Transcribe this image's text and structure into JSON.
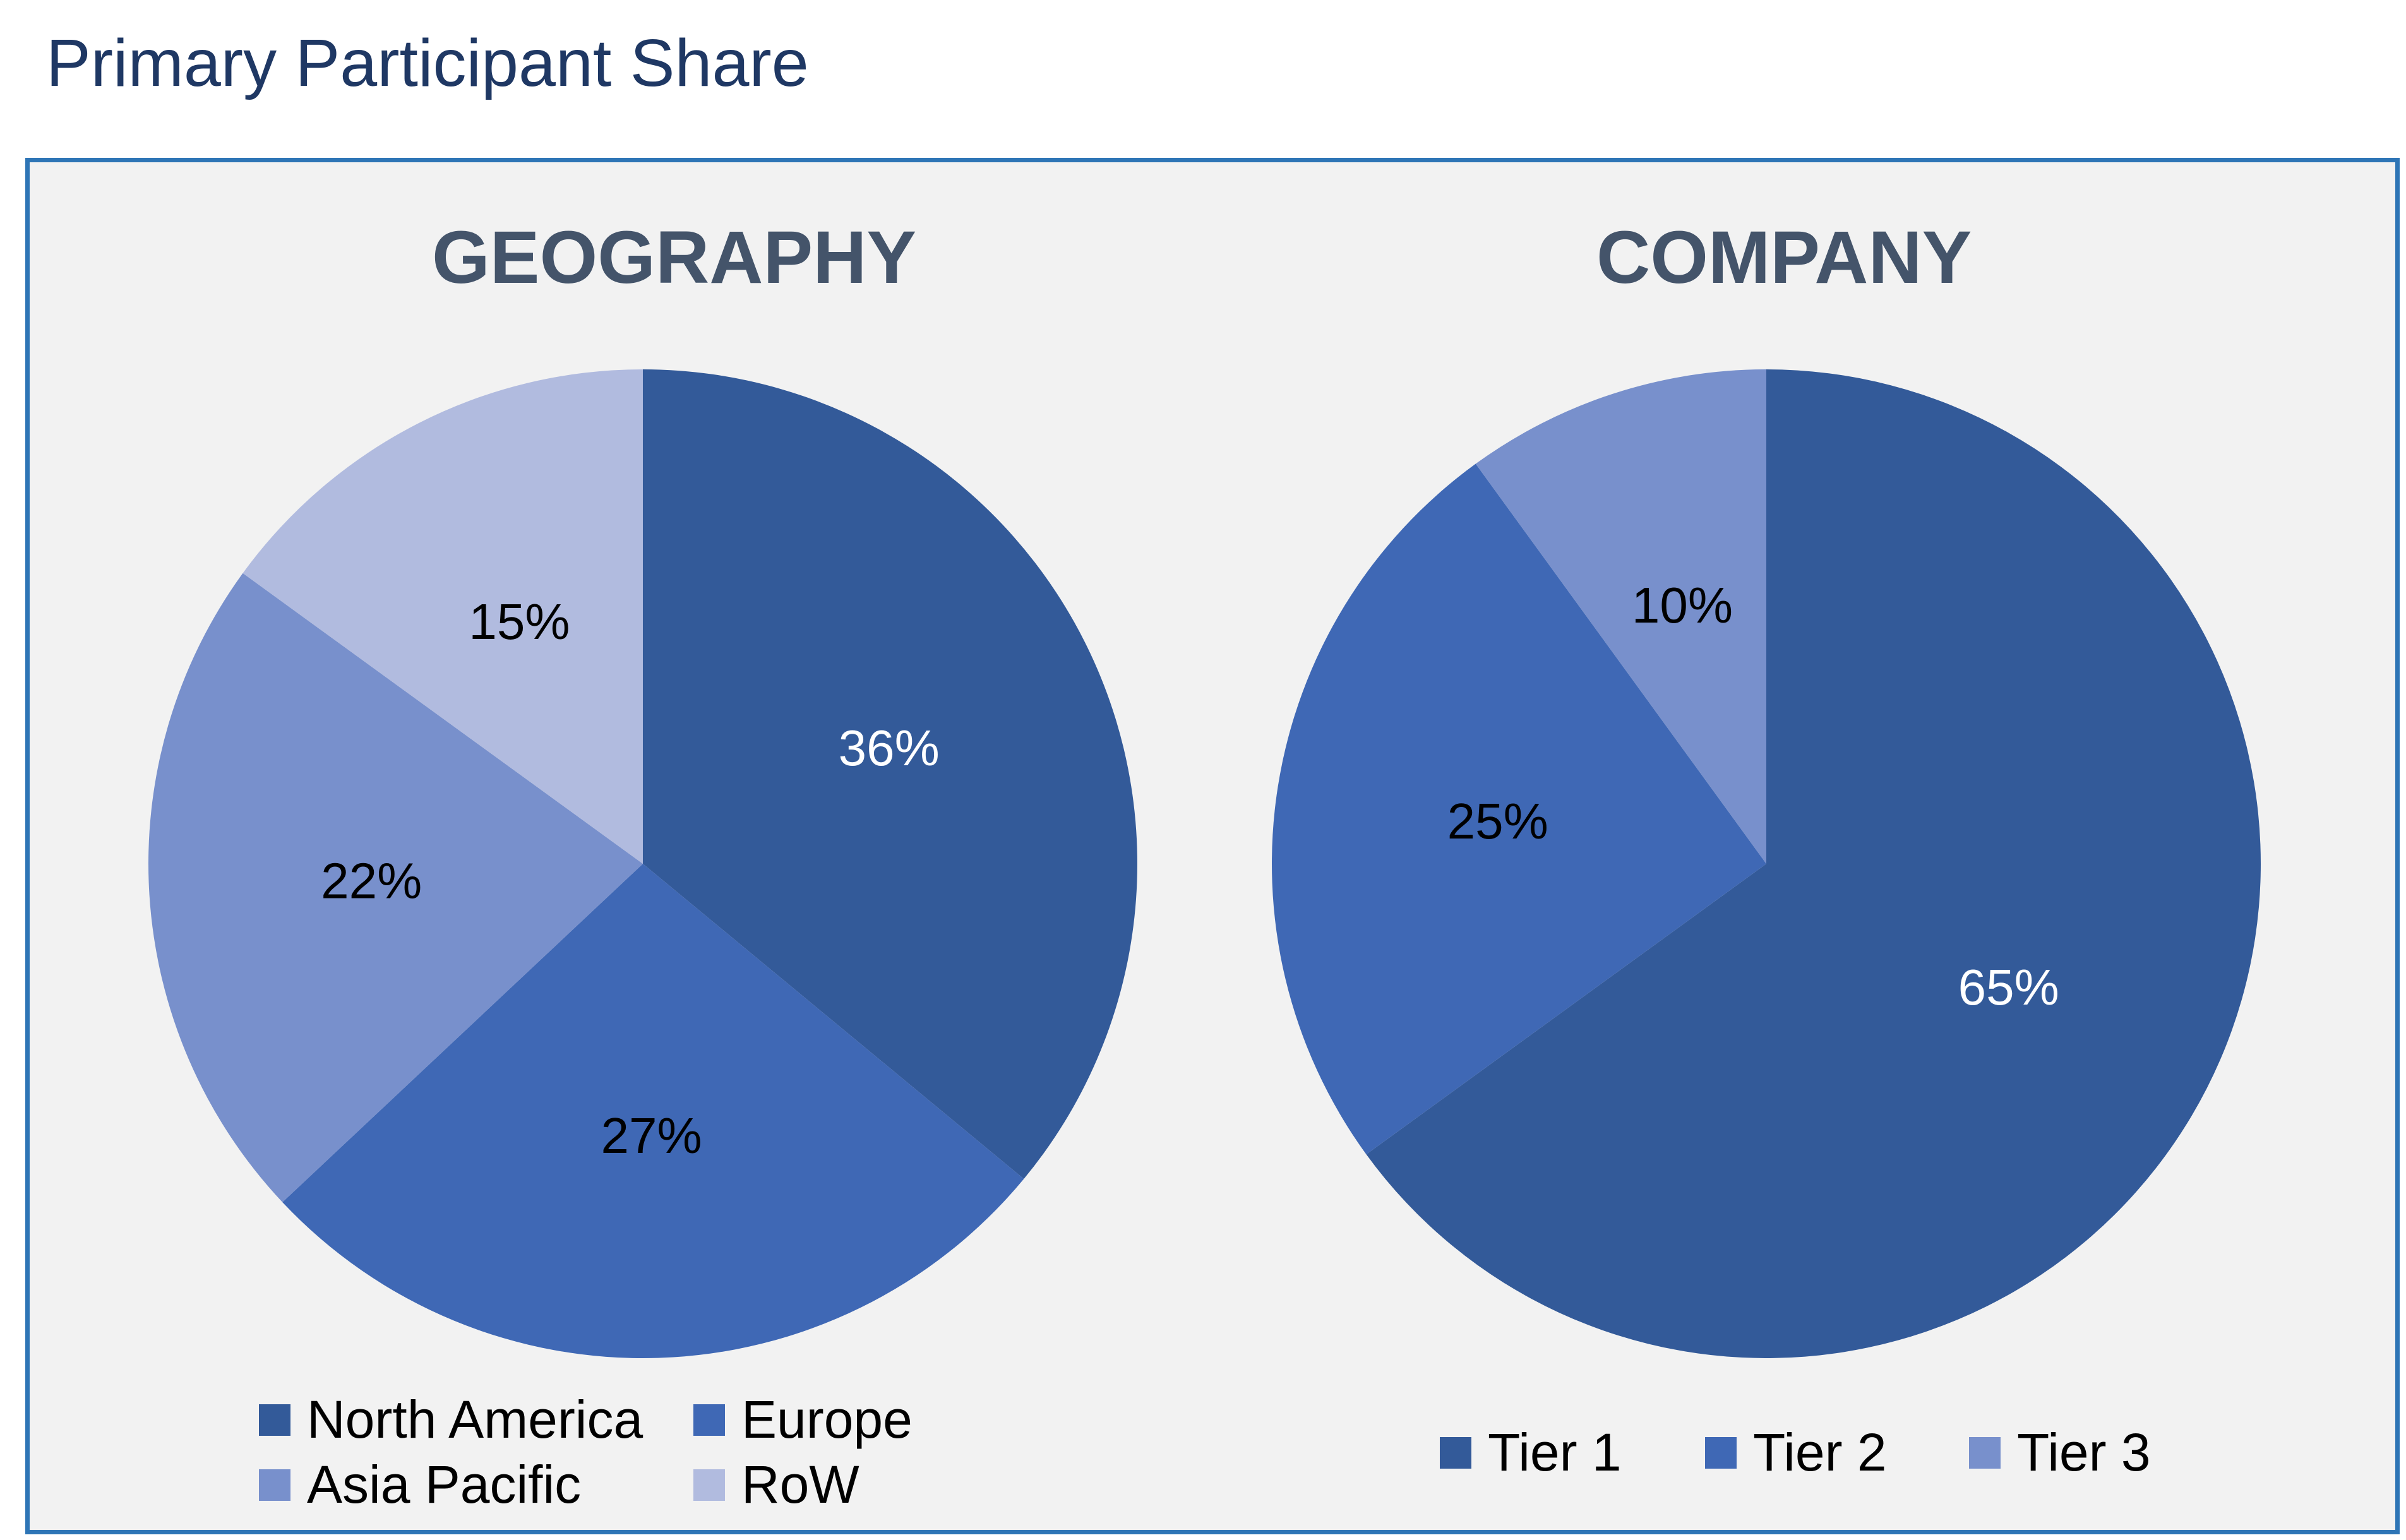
{
  "page": {
    "title": "Primary Participant Share"
  },
  "colors": {
    "panel_background": "#f2f2f2",
    "panel_border": "#2e75b6",
    "title": "#1f3864",
    "chart_title": "#44546a",
    "dark_blue": "#335a99",
    "blue": "#3f68b5",
    "light_blue": "#7890cc",
    "pale_blue": "#b1bbdf"
  },
  "chart_data": [
    {
      "type": "pie",
      "title": "GEOGRAPHY",
      "start_angle": "12 o'clock",
      "direction": "clockwise",
      "legend_position": "bottom",
      "slices": [
        {
          "label": "North America",
          "value": 36,
          "display": "36%",
          "color": "#335a99",
          "label_color": "#ffffff"
        },
        {
          "label": "Europe",
          "value": 27,
          "display": "27%",
          "color": "#3f68b5",
          "label_color": "#000000"
        },
        {
          "label": "Asia Pacific",
          "value": 22,
          "display": "22%",
          "color": "#7890cc",
          "label_color": "#000000"
        },
        {
          "label": "RoW",
          "value": 15,
          "display": "15%",
          "color": "#b1bbdf",
          "label_color": "#000000"
        }
      ]
    },
    {
      "type": "pie",
      "title": "COMPANY",
      "start_angle": "12 o'clock",
      "direction": "clockwise",
      "legend_position": "bottom",
      "slices": [
        {
          "label": "Tier 1",
          "value": 65,
          "display": "65%",
          "color": "#335a99",
          "label_color": "#ffffff"
        },
        {
          "label": "Tier 2",
          "value": 25,
          "display": "25%",
          "color": "#3f68b5",
          "label_color": "#000000"
        },
        {
          "label": "Tier 3",
          "value": 10,
          "display": "10%",
          "color": "#7890cc",
          "label_color": "#000000"
        }
      ]
    }
  ]
}
